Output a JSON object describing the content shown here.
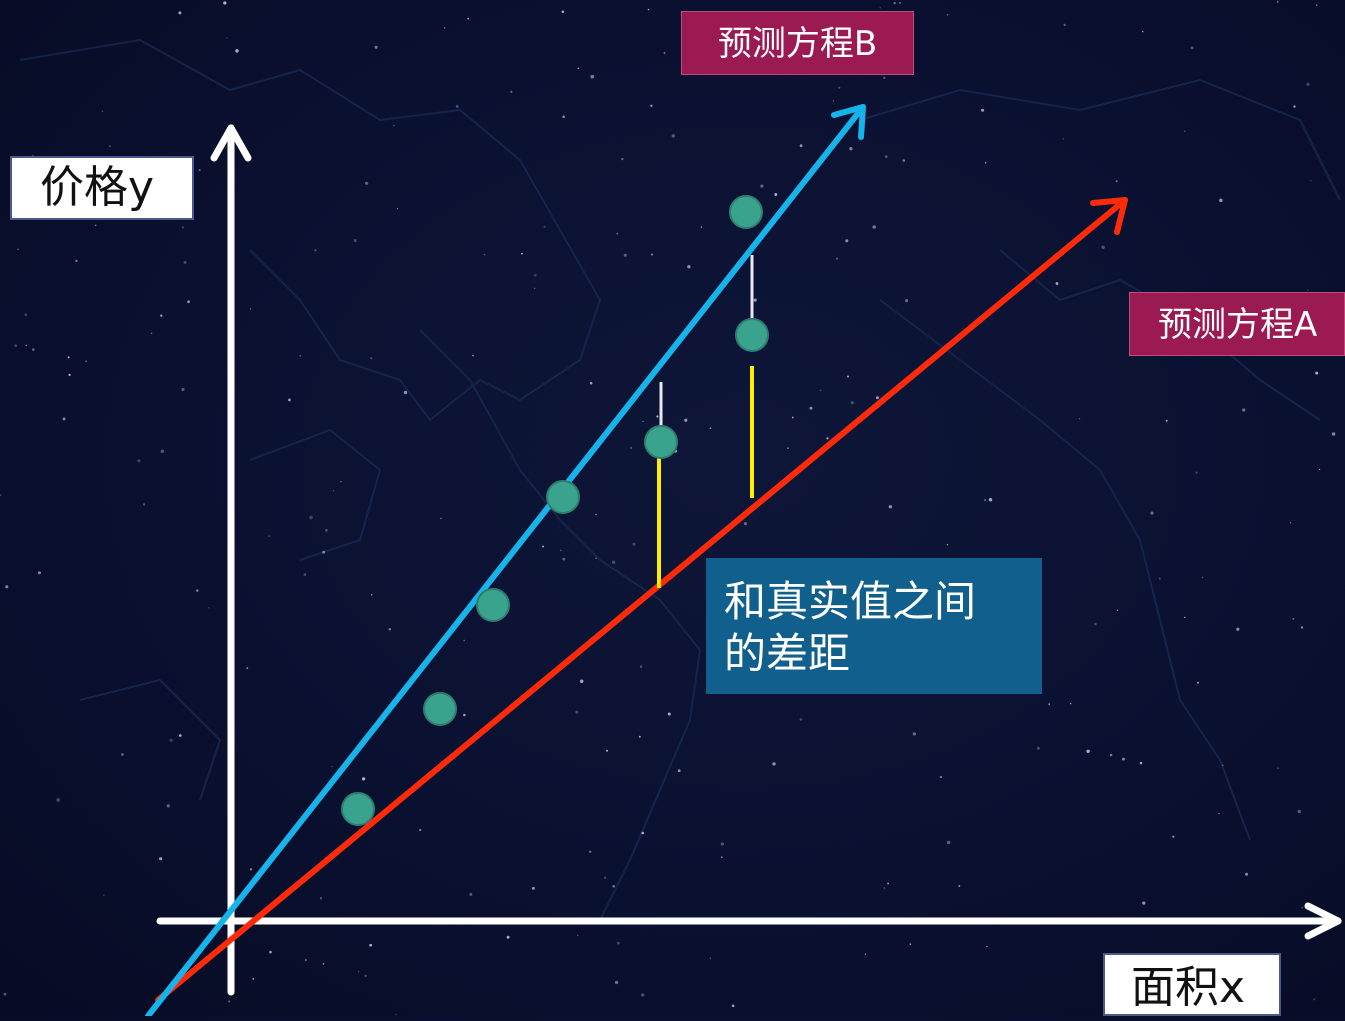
{
  "labels": {
    "y_axis": "价格y",
    "x_axis": "面积x",
    "equation_b": "预测方程B",
    "equation_a": "预测方程A",
    "note_line1": "和真实值之间",
    "note_line2": "的差距"
  },
  "colors": {
    "axes": "#ffffff",
    "line_b": "#16b4ea",
    "line_a": "#ff2a0a",
    "points": "#3aa38e",
    "residual_a": "#ffee00",
    "residual_b": "#e8e8f0",
    "equation_label_bg": "#9b1a52",
    "note_bg": "#115f8d"
  }
}
